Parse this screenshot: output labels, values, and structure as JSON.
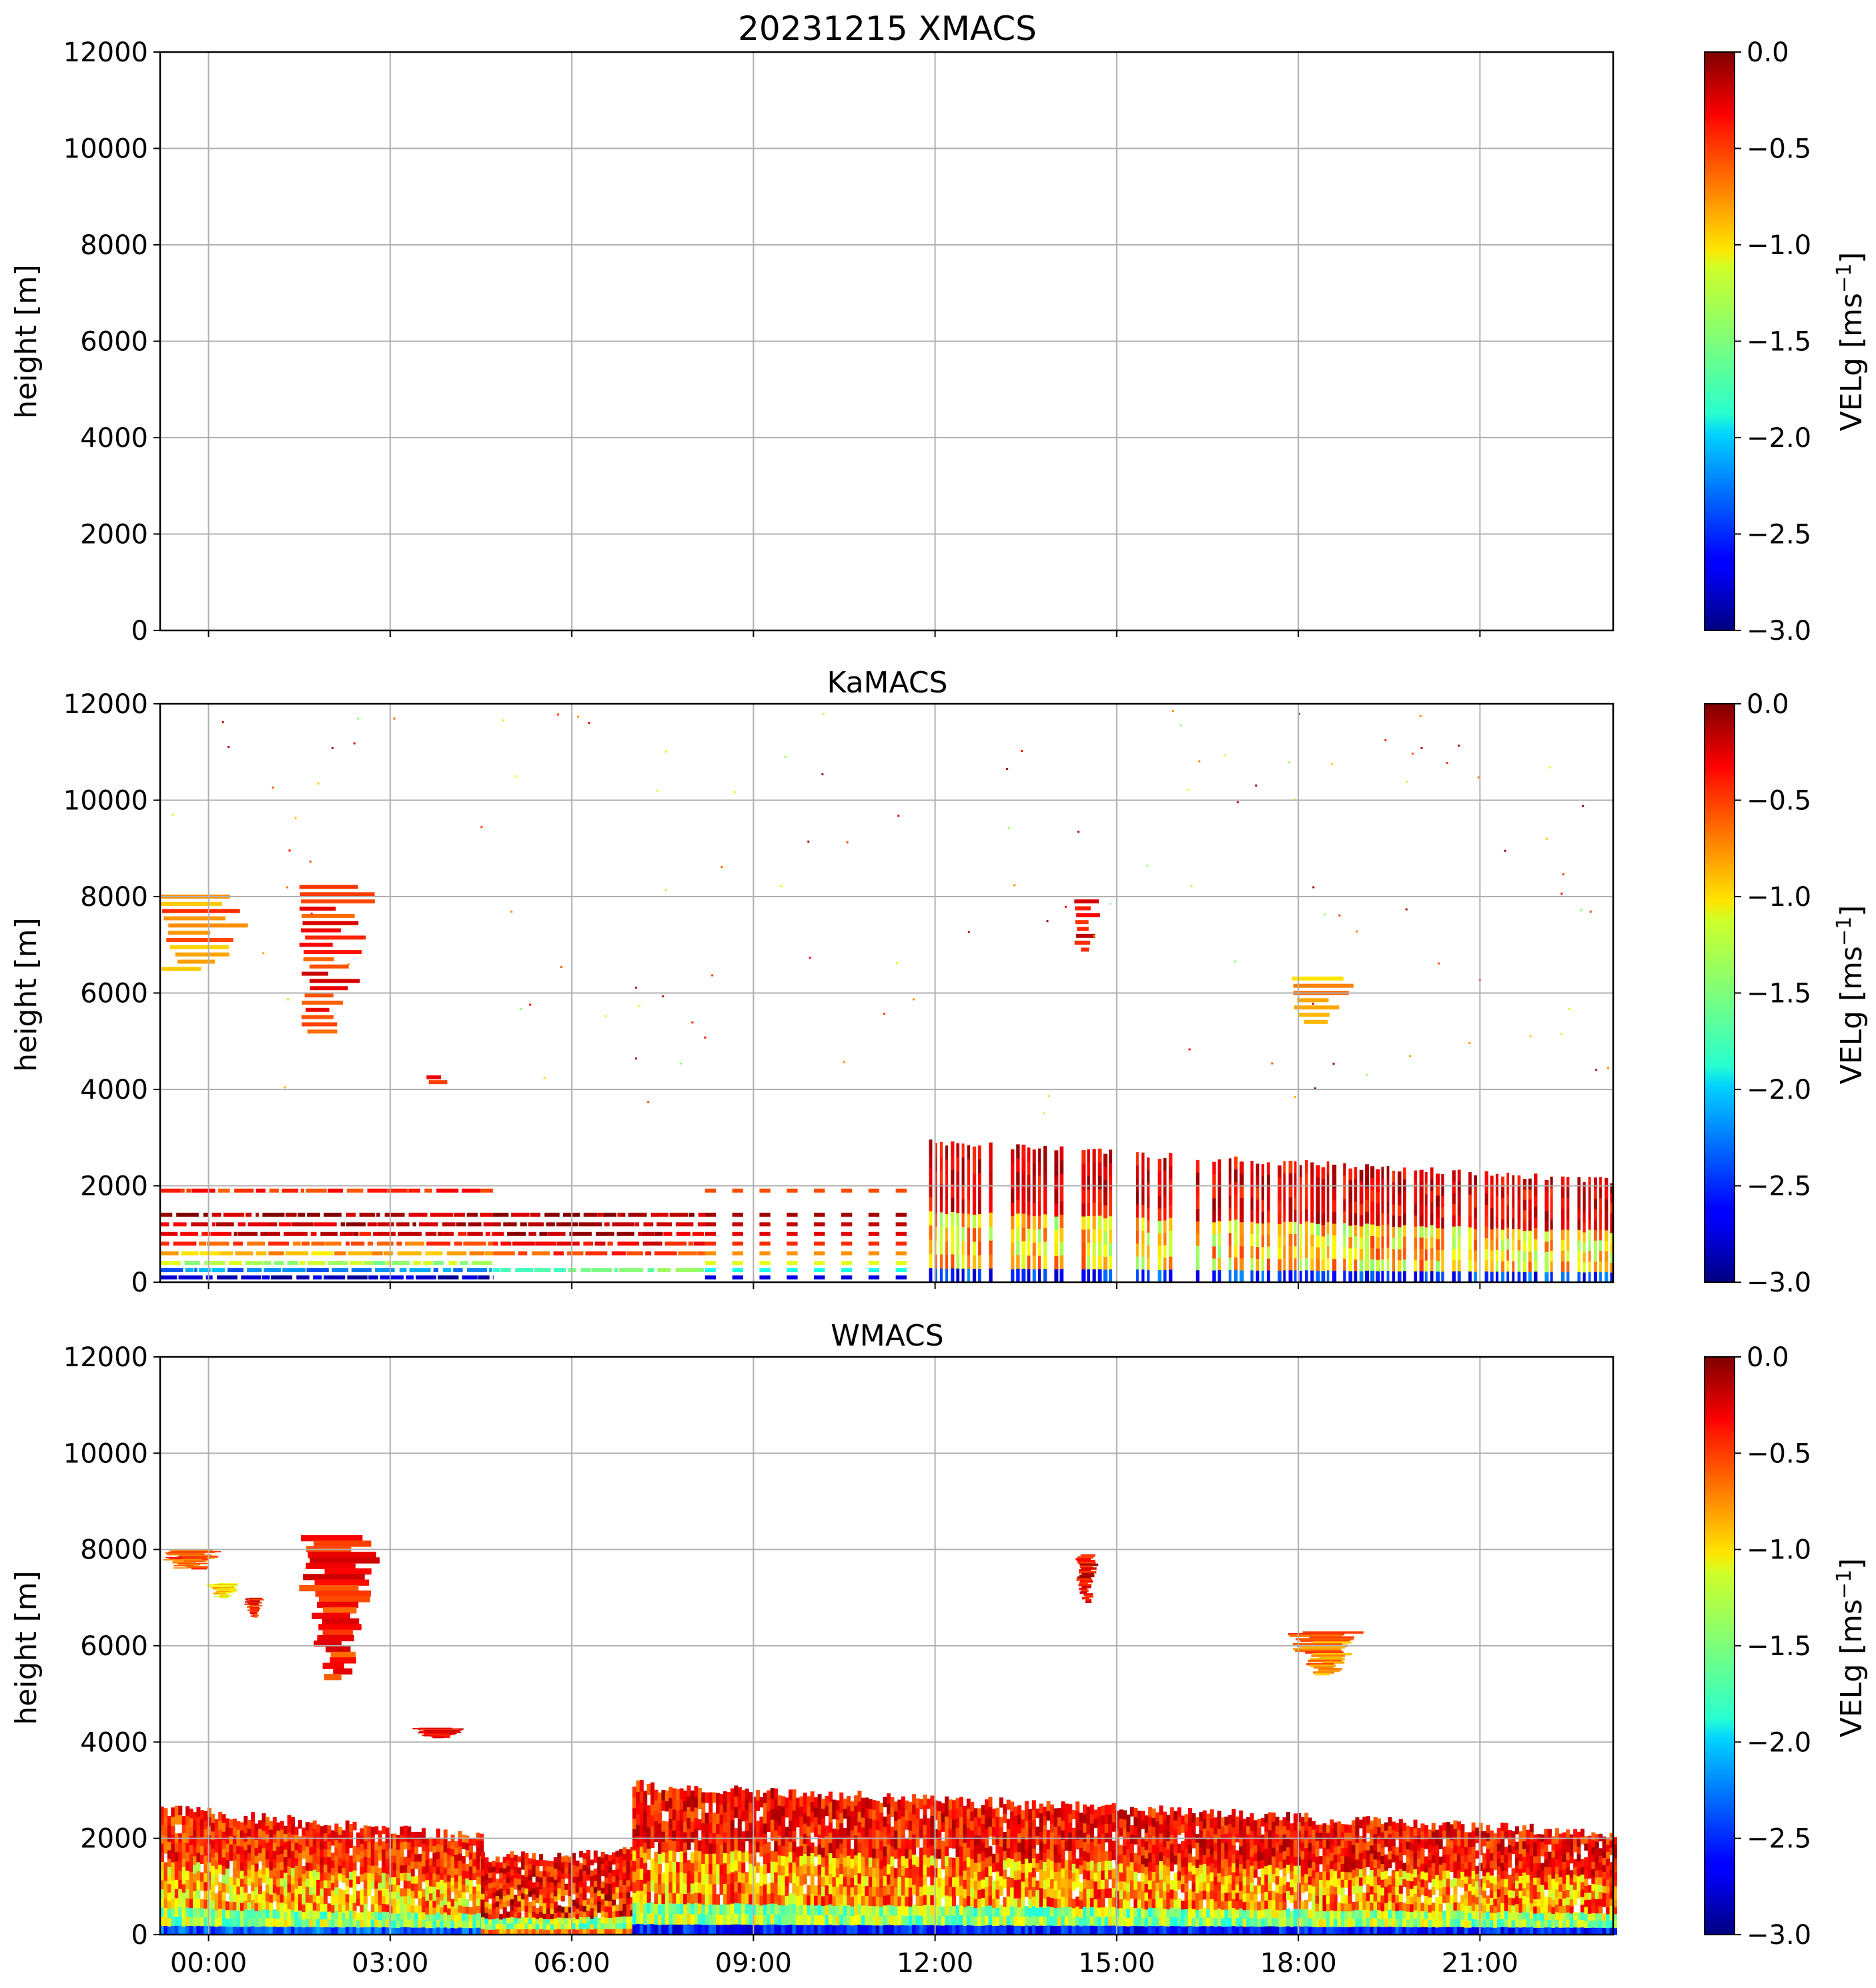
{
  "chart_data": [
    {
      "type": "heatmap",
      "panel": "XMACS",
      "title": "20231215 XMACS",
      "xlabel": "",
      "ylabel": "height [m]",
      "ylim": [
        0,
        12000
      ],
      "yticks": [
        "0",
        "2000",
        "4000",
        "6000",
        "8000",
        "10000",
        "12000"
      ],
      "xlim_hours": [
        -0.8,
        23.2
      ],
      "xticks": [
        "00:00",
        "03:00",
        "06:00",
        "09:00",
        "12:00",
        "15:00",
        "18:00",
        "21:00"
      ],
      "grid": true,
      "colorbar": {
        "label": "VELg [ms",
        "label_sup": "−1",
        "label_end": "]",
        "range": [
          -3.0,
          0.0
        ],
        "ticks": [
          "0.0",
          "−0.5",
          "−1.0",
          "−1.5",
          "−2.0",
          "−2.5",
          "−3.0"
        ]
      },
      "regions": []
    },
    {
      "type": "heatmap",
      "panel": "KaMACS",
      "title": "KaMACS",
      "xlabel": "",
      "ylabel": "height [m]",
      "ylim": [
        0,
        12000
      ],
      "yticks": [
        "0",
        "2000",
        "4000",
        "6000",
        "8000",
        "10000",
        "12000"
      ],
      "xlim_hours": [
        -0.8,
        23.2
      ],
      "xticks": [
        "00:00",
        "03:00",
        "06:00",
        "09:00",
        "12:00",
        "15:00",
        "18:00",
        "21:00"
      ],
      "grid": true,
      "colorbar": {
        "label": "VELg [ms",
        "label_sup": "−1",
        "label_end": "]",
        "range": [
          -3.0,
          0.0
        ],
        "ticks": [
          "0.0",
          "−0.5",
          "−1.0",
          "−1.5",
          "−2.0",
          "−2.5",
          "−3.0"
        ]
      },
      "regions": [
        {
          "kind": "layers",
          "t0": -0.8,
          "t1": 4.7,
          "levels": [
            100,
            250,
            400,
            600,
            800,
            1000,
            1200,
            1400,
            1900
          ],
          "values": [
            -2.8,
            -2.2,
            -1.4,
            -0.9,
            -0.6,
            -0.3,
            -0.2,
            -0.1,
            -0.5
          ]
        },
        {
          "kind": "layers",
          "t0": 4.7,
          "t1": 8.2,
          "levels": [
            250,
            600,
            800,
            1000,
            1200,
            1400
          ],
          "values": [
            -1.6,
            -0.6,
            -0.4,
            -0.2,
            -0.1,
            -0.1
          ]
        },
        {
          "kind": "layers_dashed",
          "t0": 8.2,
          "t1": 11.6,
          "levels": [
            100,
            250,
            400,
            600,
            800,
            1000,
            1200,
            1400,
            1900
          ],
          "values": [
            -2.7,
            -1.8,
            -1.2,
            -0.8,
            -0.5,
            -0.3,
            -0.2,
            -0.1,
            -0.6
          ]
        },
        {
          "kind": "columns",
          "t0": 11.9,
          "t1": 23.2,
          "top_start": 2900,
          "top_end": 2100,
          "surface_value": -2.8,
          "mid_value": -1.0,
          "top_value": -0.05
        },
        {
          "kind": "streaks",
          "t0": -0.8,
          "t1": 0.9,
          "top": 8000,
          "bottom": 6500,
          "value": -0.5
        },
        {
          "kind": "streaks",
          "t0": 1.5,
          "t1": 2.8,
          "top": 8200,
          "bottom": 5200,
          "value": -0.2
        },
        {
          "kind": "streaks",
          "t0": 3.6,
          "t1": 4.0,
          "top": 4250,
          "bottom": 4150,
          "value": -0.1
        },
        {
          "kind": "streaks",
          "t0": 14.3,
          "t1": 14.8,
          "top": 7900,
          "bottom": 6900,
          "value": -0.1
        },
        {
          "kind": "streaks",
          "t0": 17.9,
          "t1": 19.0,
          "top": 6300,
          "bottom": 5400,
          "value": -0.6
        }
      ]
    },
    {
      "type": "heatmap",
      "panel": "WMACS",
      "title": "WMACS",
      "xlabel": "",
      "ylabel": "height [m]",
      "ylim": [
        0,
        12000
      ],
      "yticks": [
        "0",
        "2000",
        "4000",
        "6000",
        "8000",
        "10000",
        "12000"
      ],
      "xlim_hours": [
        -0.8,
        23.2
      ],
      "xticks": [
        "00:00",
        "03:00",
        "06:00",
        "09:00",
        "12:00",
        "15:00",
        "18:00",
        "21:00"
      ],
      "grid": true,
      "colorbar": {
        "label": "VELg [ms",
        "label_sup": "−1",
        "label_end": "]",
        "range": [
          -3.0,
          0.0
        ],
        "ticks": [
          "0.0",
          "−0.5",
          "−1.0",
          "−1.5",
          "−2.0",
          "−2.5",
          "−3.0"
        ]
      },
      "regions": [
        {
          "kind": "boundary_layer",
          "t0": -0.8,
          "t1": 4.5,
          "top_start": 2600,
          "top_end": 2000,
          "surface_value": -2.6,
          "mid_value": -0.9,
          "top_value": -0.2
        },
        {
          "kind": "boundary_layer",
          "t0": 4.5,
          "t1": 7.0,
          "top_start": 1600,
          "top_end": 1700,
          "surface_value": -1.0,
          "mid_value": -0.5,
          "top_value": -0.1
        },
        {
          "kind": "boundary_layer",
          "t0": 7.0,
          "t1": 23.2,
          "top_start": 3100,
          "top_end": 2100,
          "surface_value": -2.8,
          "mid_value": -0.8,
          "top_value": -0.1
        },
        {
          "kind": "blob",
          "t0": 1.5,
          "t1": 2.8,
          "top": 8300,
          "bottom": 5300,
          "value": -0.2
        },
        {
          "kind": "blob",
          "t0": -0.8,
          "t1": 0.2,
          "top": 8000,
          "bottom": 7600,
          "value": -0.4
        },
        {
          "kind": "blob",
          "t0": 0.0,
          "t1": 0.5,
          "top": 7300,
          "bottom": 7000,
          "value": -0.8
        },
        {
          "kind": "blob",
          "t0": 0.6,
          "t1": 0.9,
          "top": 7000,
          "bottom": 6600,
          "value": -0.2
        },
        {
          "kind": "blob",
          "t0": 3.4,
          "t1": 4.2,
          "top": 4300,
          "bottom": 4100,
          "value": -0.1
        },
        {
          "kind": "blob",
          "t0": 14.3,
          "t1": 14.7,
          "top": 7900,
          "bottom": 6900,
          "value": -0.1
        },
        {
          "kind": "blob",
          "t0": 17.9,
          "t1": 19.0,
          "top": 6300,
          "bottom": 5400,
          "value": -0.5
        }
      ]
    }
  ]
}
